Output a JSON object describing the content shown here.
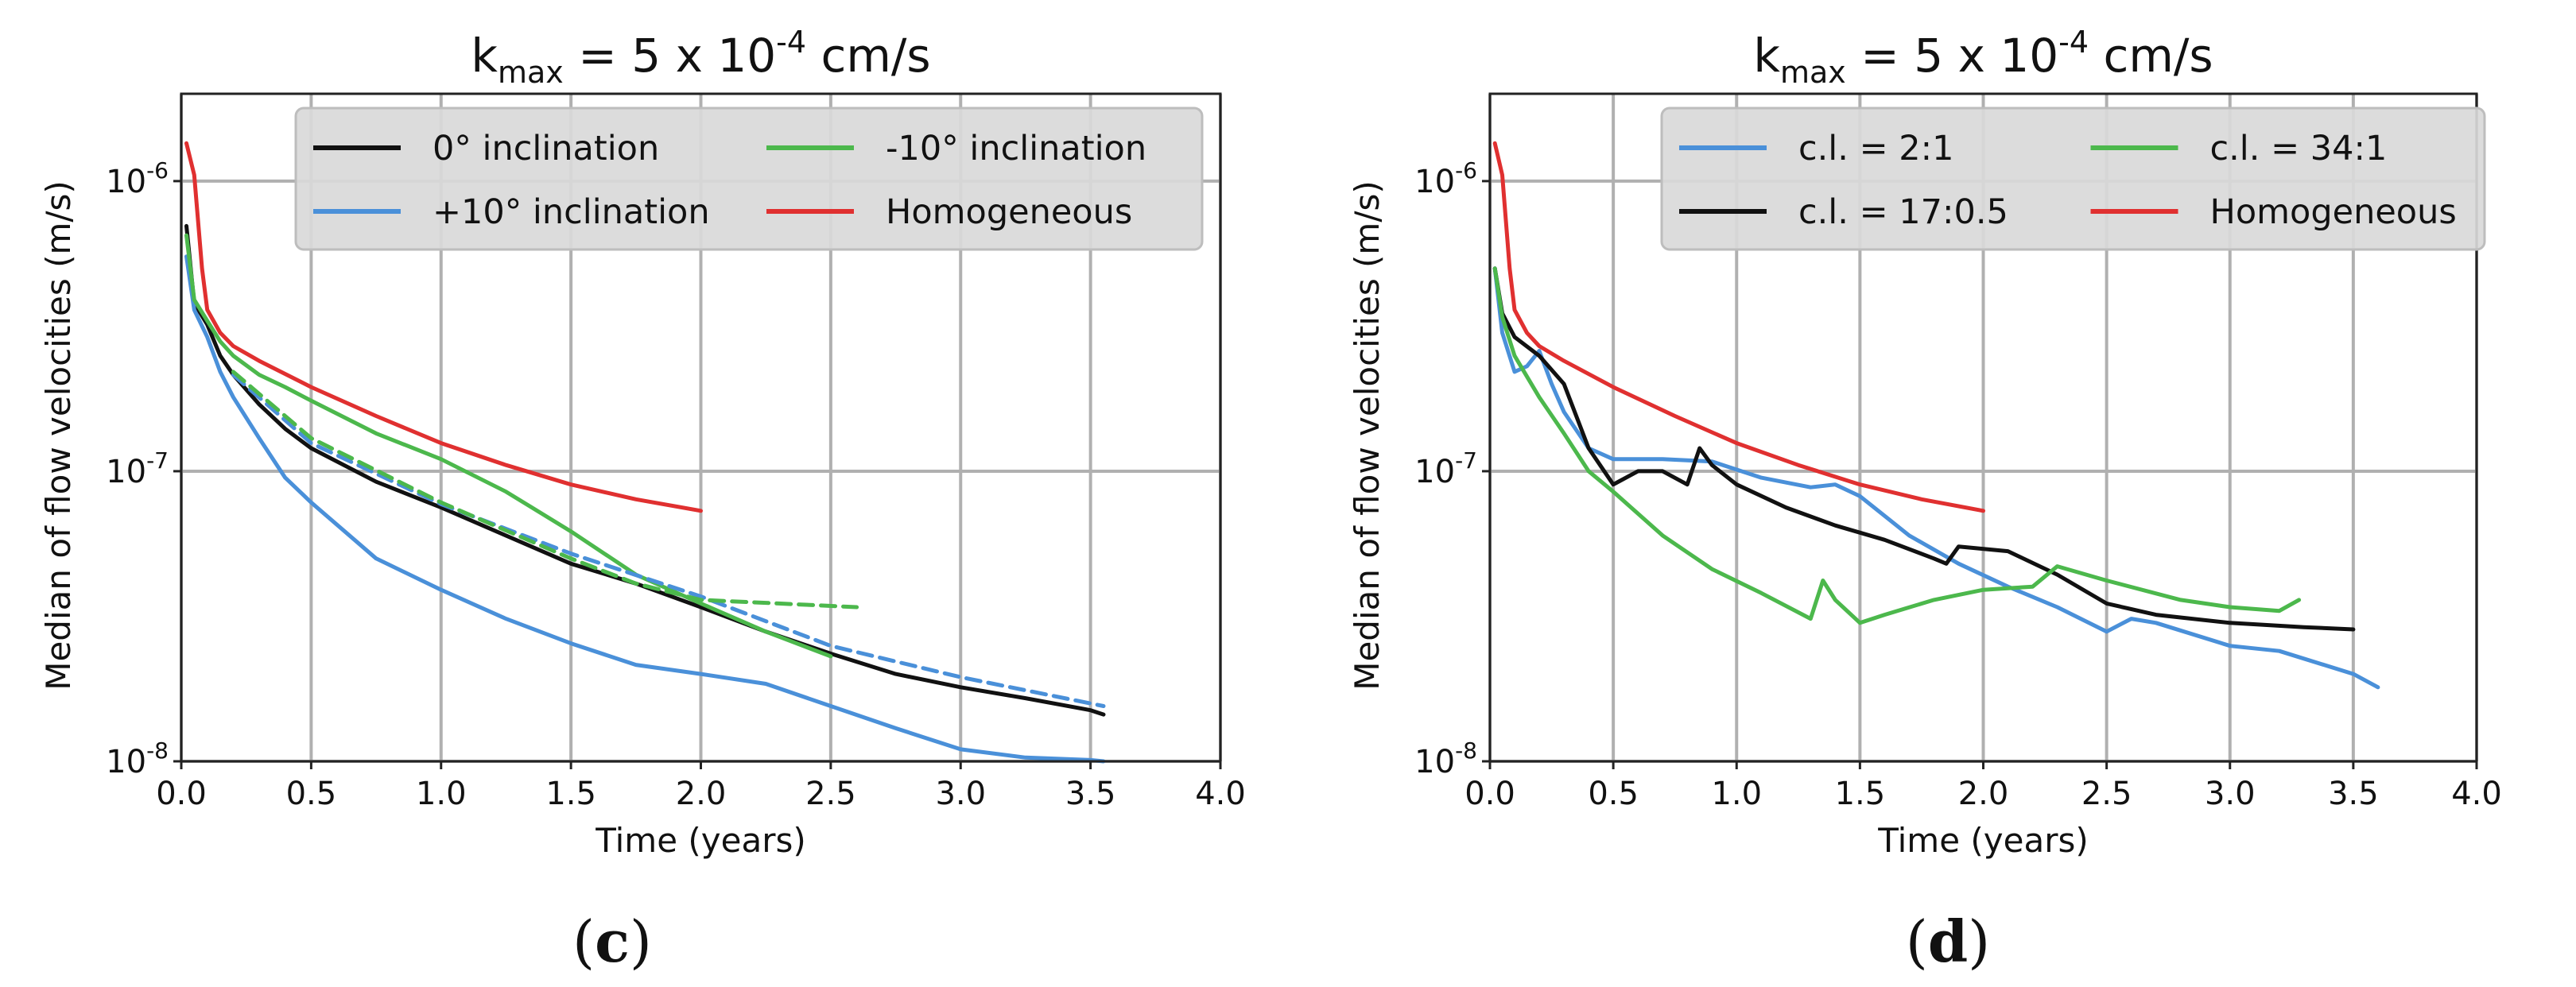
{
  "chart_data": [
    {
      "id": "c",
      "type": "line",
      "caption_letter": "c",
      "title_base": "k",
      "title_sub": "max",
      "title_mid": " = 5 x 10",
      "title_exp": "-4",
      "title_unit": " cm/s",
      "xlabel": "Time (years)",
      "ylabel": "Median of flow velocities (m/s)",
      "xlim": [
        0,
        4
      ],
      "ylim": [
        1e-08,
        2e-06
      ],
      "yscale": "log",
      "grid": true,
      "legend_position": "top-right",
      "x_ticks": [
        "0.0",
        "0.5",
        "1.0",
        "1.5",
        "2.0",
        "2.5",
        "3.0",
        "3.5",
        "4.0"
      ],
      "y_ticks": [
        {
          "base": "10",
          "exp": "-8",
          "value": 1e-08
        },
        {
          "base": "10",
          "exp": "-7",
          "value": 1e-07
        },
        {
          "base": "10",
          "exp": "-6",
          "value": 1e-06
        }
      ],
      "series": [
        {
          "name": "0° inclination",
          "color": "#111111",
          "dash": false,
          "legend": true,
          "x": [
            0.02,
            0.05,
            0.1,
            0.15,
            0.2,
            0.3,
            0.4,
            0.5,
            0.75,
            1.0,
            1.25,
            1.5,
            1.75,
            2.0,
            2.25,
            2.5,
            2.75,
            3.0,
            3.25,
            3.5,
            3.55
          ],
          "y": [
            7e-07,
            3.8e-07,
            3.2e-07,
            2.5e-07,
            2.15e-07,
            1.7e-07,
            1.4e-07,
            1.2e-07,
            9.2e-08,
            7.5e-08,
            6e-08,
            4.8e-08,
            4.1e-08,
            3.4e-08,
            2.8e-08,
            2.35e-08,
            2e-08,
            1.8e-08,
            1.65e-08,
            1.5e-08,
            1.45e-08
          ]
        },
        {
          "name": "+10° inclination",
          "color": "#4a90d9",
          "dash": false,
          "legend": true,
          "x": [
            0.02,
            0.05,
            0.1,
            0.15,
            0.2,
            0.3,
            0.4,
            0.5,
            0.75,
            1.0,
            1.25,
            1.5,
            1.75,
            2.0,
            2.25,
            2.5,
            2.75,
            3.0,
            3.25,
            3.5,
            3.55
          ],
          "y": [
            5.5e-07,
            3.6e-07,
            2.9e-07,
            2.2e-07,
            1.8e-07,
            1.3e-07,
            9.5e-08,
            7.8e-08,
            5e-08,
            3.9e-08,
            3.1e-08,
            2.55e-08,
            2.15e-08,
            2e-08,
            1.85e-08,
            1.55e-08,
            1.3e-08,
            1.1e-08,
            1.03e-08,
            1.01e-08,
            1e-08
          ]
        },
        {
          "name": "-10° inclination",
          "color": "#4cb84c",
          "dash": false,
          "legend": true,
          "x": [
            0.02,
            0.05,
            0.1,
            0.15,
            0.2,
            0.3,
            0.4,
            0.5,
            0.75,
            1.0,
            1.25,
            1.5,
            1.75,
            2.0,
            2.25,
            2.5
          ],
          "y": [
            6.5e-07,
            3.9e-07,
            3.3e-07,
            2.8e-07,
            2.5e-07,
            2.15e-07,
            1.95e-07,
            1.75e-07,
            1.35e-07,
            1.1e-07,
            8.5e-08,
            6.2e-08,
            4.4e-08,
            3.5e-08,
            2.8e-08,
            2.3e-08
          ]
        },
        {
          "name": "Homogeneous",
          "color": "#e03030",
          "dash": false,
          "legend": true,
          "x": [
            0.02,
            0.05,
            0.08,
            0.1,
            0.15,
            0.2,
            0.3,
            0.5,
            0.75,
            1.0,
            1.25,
            1.5,
            1.75,
            2.0
          ],
          "y": [
            1.35e-06,
            1.05e-06,
            5e-07,
            3.6e-07,
            3e-07,
            2.7e-07,
            2.4e-07,
            1.95e-07,
            1.55e-07,
            1.25e-07,
            1.05e-07,
            9e-08,
            8e-08,
            7.3e-08
          ]
        },
        {
          "name": "+10° inclination (dashed)",
          "color": "#4a90d9",
          "dash": true,
          "legend": false,
          "x": [
            0.2,
            0.5,
            1.0,
            1.5,
            2.0,
            2.5,
            3.0,
            3.55
          ],
          "y": [
            2.15e-07,
            1.25e-07,
            7.7e-08,
            5.2e-08,
            3.7e-08,
            2.5e-08,
            1.95e-08,
            1.55e-08
          ]
        },
        {
          "name": "-10° inclination (dashed)",
          "color": "#4cb84c",
          "dash": true,
          "legend": false,
          "x": [
            0.2,
            0.5,
            1.0,
            1.5,
            1.75,
            2.0,
            2.3,
            2.6
          ],
          "y": [
            2.2e-07,
            1.3e-07,
            7.8e-08,
            5e-08,
            4.1e-08,
            3.6e-08,
            3.5e-08,
            3.4e-08
          ]
        }
      ],
      "legend_order": [
        0,
        2,
        1,
        3
      ]
    },
    {
      "id": "d",
      "type": "line",
      "caption_letter": "d",
      "title_base": "k",
      "title_sub": "max",
      "title_mid": " = 5 x 10",
      "title_exp": "-4",
      "title_unit": " cm/s",
      "xlabel": "Time (years)",
      "ylabel": "Median of flow velocities (m/s)",
      "xlim": [
        0,
        4
      ],
      "ylim": [
        1e-08,
        2e-06
      ],
      "yscale": "log",
      "grid": true,
      "legend_position": "top-right",
      "x_ticks": [
        "0.0",
        "0.5",
        "1.0",
        "1.5",
        "2.0",
        "2.5",
        "3.0",
        "3.5",
        "4.0"
      ],
      "y_ticks": [
        {
          "base": "10",
          "exp": "-8",
          "value": 1e-08
        },
        {
          "base": "10",
          "exp": "-7",
          "value": 1e-07
        },
        {
          "base": "10",
          "exp": "-6",
          "value": 1e-06
        }
      ],
      "series": [
        {
          "name": "c.l. = 2:1",
          "color": "#4a90d9",
          "dash": false,
          "legend": true,
          "x": [
            0.02,
            0.05,
            0.1,
            0.15,
            0.2,
            0.25,
            0.3,
            0.4,
            0.5,
            0.7,
            0.9,
            1.1,
            1.3,
            1.4,
            1.5,
            1.7,
            1.9,
            2.1,
            2.3,
            2.5,
            2.6,
            2.7,
            3.0,
            3.2,
            3.5,
            3.6
          ],
          "y": [
            5e-07,
            3e-07,
            2.2e-07,
            2.3e-07,
            2.6e-07,
            2e-07,
            1.6e-07,
            1.2e-07,
            1.1e-07,
            1.1e-07,
            1.08e-07,
            9.5e-08,
            8.8e-08,
            9e-08,
            8.2e-08,
            6e-08,
            4.8e-08,
            4e-08,
            3.4e-08,
            2.8e-08,
            3.1e-08,
            3e-08,
            2.5e-08,
            2.4e-08,
            2e-08,
            1.8e-08
          ]
        },
        {
          "name": "c.l. = 17:0.5",
          "color": "#111111",
          "dash": false,
          "legend": true,
          "x": [
            0.02,
            0.05,
            0.1,
            0.2,
            0.3,
            0.4,
            0.5,
            0.6,
            0.7,
            0.8,
            0.85,
            0.9,
            1.0,
            1.2,
            1.4,
            1.6,
            1.8,
            1.85,
            1.9,
            2.1,
            2.3,
            2.5,
            2.7,
            3.0,
            3.3,
            3.5
          ],
          "y": [
            5e-07,
            3.5e-07,
            2.9e-07,
            2.5e-07,
            2e-07,
            1.2e-07,
            9e-08,
            1e-07,
            1e-07,
            9e-08,
            1.2e-07,
            1.05e-07,
            9e-08,
            7.5e-08,
            6.5e-08,
            5.8e-08,
            5e-08,
            4.8e-08,
            5.5e-08,
            5.3e-08,
            4.4e-08,
            3.5e-08,
            3.2e-08,
            3e-08,
            2.9e-08,
            2.85e-08
          ]
        },
        {
          "name": "c.l. = 34:1",
          "color": "#4cb84c",
          "dash": false,
          "legend": true,
          "x": [
            0.02,
            0.05,
            0.1,
            0.2,
            0.3,
            0.4,
            0.5,
            0.7,
            0.9,
            1.1,
            1.3,
            1.35,
            1.4,
            1.5,
            1.6,
            1.8,
            2.0,
            2.2,
            2.3,
            2.5,
            2.8,
            3.0,
            3.2,
            3.28
          ],
          "y": [
            5e-07,
            3.4e-07,
            2.5e-07,
            1.8e-07,
            1.35e-07,
            1e-07,
            8.5e-08,
            6e-08,
            4.6e-08,
            3.8e-08,
            3.1e-08,
            4.2e-08,
            3.6e-08,
            3e-08,
            3.2e-08,
            3.6e-08,
            3.9e-08,
            4e-08,
            4.7e-08,
            4.2e-08,
            3.6e-08,
            3.4e-08,
            3.3e-08,
            3.6e-08
          ]
        },
        {
          "name": "Homogeneous",
          "color": "#e03030",
          "dash": false,
          "legend": true,
          "x": [
            0.02,
            0.05,
            0.08,
            0.1,
            0.15,
            0.2,
            0.3,
            0.5,
            0.75,
            1.0,
            1.25,
            1.5,
            1.75,
            2.0
          ],
          "y": [
            1.35e-06,
            1.05e-06,
            5e-07,
            3.6e-07,
            3e-07,
            2.7e-07,
            2.4e-07,
            1.95e-07,
            1.55e-07,
            1.25e-07,
            1.05e-07,
            9e-08,
            8e-08,
            7.3e-08
          ]
        }
      ],
      "legend_order": [
        0,
        2,
        1,
        3
      ]
    }
  ]
}
